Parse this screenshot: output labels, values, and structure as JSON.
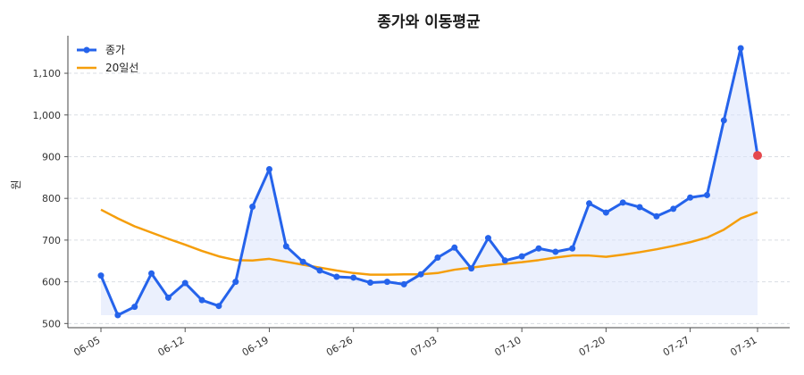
{
  "chart_data": {
    "type": "line",
    "title": "종가와 이동평균",
    "ylabel": "원",
    "xlabel": "",
    "ylim": [
      490,
      1190
    ],
    "yticks": [
      500,
      600,
      700,
      800,
      900,
      1000,
      1100
    ],
    "ytick_labels": [
      "500",
      "600",
      "700",
      "800",
      "900",
      "1,000",
      "1,100"
    ],
    "xtick_labels": [
      "06-05",
      "06-12",
      "06-19",
      "06-26",
      "07-03",
      "07-10",
      "07-20",
      "07-27",
      "07-31"
    ],
    "xtick_index": [
      0,
      5,
      10,
      15,
      20,
      25,
      30,
      35,
      39
    ],
    "grid": "horizontal",
    "legend_position": "top-left",
    "colors": {
      "close": "#2563eb",
      "ma": "#f59e0b",
      "fill": "#dbe4fb",
      "last_point": "#e5484d"
    },
    "series": [
      {
        "name": "종가",
        "values": [
          615,
          520,
          540,
          620,
          562,
          597,
          556,
          542,
          600,
          780,
          870,
          685,
          648,
          627,
          612,
          610,
          598,
          600,
          594,
          618,
          658,
          682,
          632,
          705,
          651,
          661,
          680,
          672,
          680,
          788,
          766,
          790,
          779,
          757,
          775,
          802,
          808,
          987,
          1160,
          903
        ]
      },
      {
        "name": "20일선",
        "values": [
          773,
          752,
          733,
          718,
          703,
          689,
          674,
          661,
          652,
          651,
          655,
          648,
          641,
          634,
          627,
          621,
          617,
          617,
          618,
          618,
          621,
          629,
          634,
          639,
          643,
          647,
          652,
          658,
          663,
          663,
          660,
          665,
          671,
          678,
          686,
          695,
          706,
          725,
          752,
          767
        ]
      }
    ]
  }
}
